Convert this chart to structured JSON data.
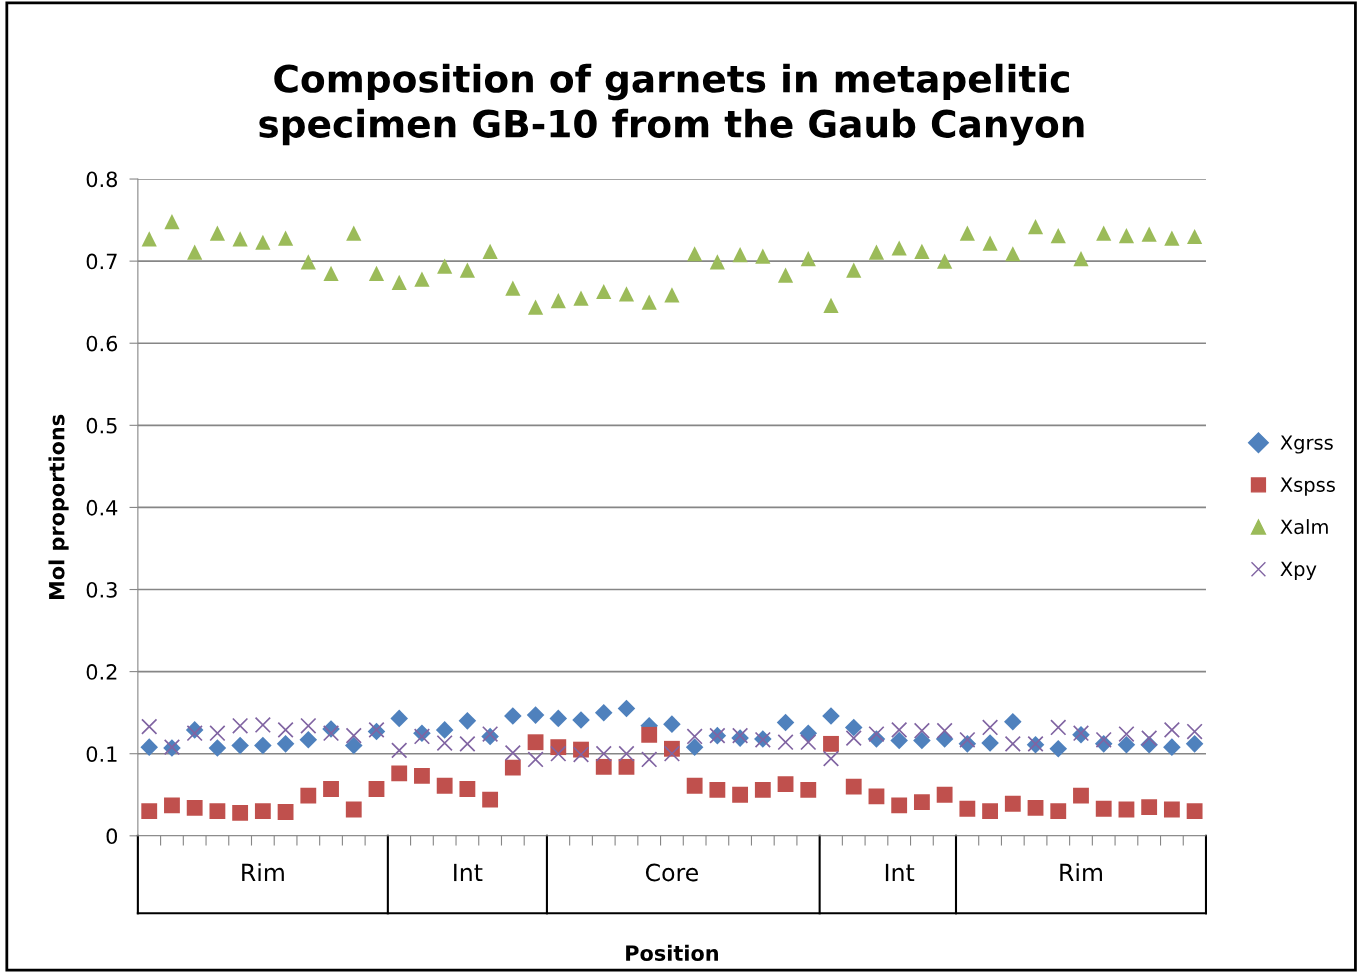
{
  "chart_data": {
    "type": "scatter",
    "title": "Composition of garnets in metapelitic\nspecimen GB-10 from the Gaub Canyon",
    "xlabel": "Position",
    "ylabel": "Mol proportions",
    "categories": [
      null,
      null,
      null,
      null,
      null,
      "Rim",
      null,
      null,
      null,
      null,
      null,
      null,
      null,
      null,
      "Int",
      null,
      null,
      null,
      null,
      null,
      null,
      null,
      null,
      "Core",
      null,
      null,
      null,
      null,
      null,
      null,
      null,
      null,
      null,
      "Int",
      null,
      null,
      null,
      null,
      null,
      null,
      null,
      "Rim",
      null,
      null,
      null,
      null,
      null
    ],
    "series": [
      {
        "name": "Xgrss",
        "color": "#4f81bd",
        "marker": "diamond",
        "values": [
          0.108,
          0.107,
          0.129,
          0.107,
          0.11,
          0.11,
          0.112,
          0.117,
          0.13,
          0.11,
          0.127,
          0.143,
          0.125,
          0.129,
          0.14,
          0.121,
          0.146,
          0.147,
          0.143,
          0.141,
          0.15,
          0.155,
          0.134,
          0.136,
          0.108,
          0.122,
          0.119,
          0.118,
          0.138,
          0.125,
          0.146,
          0.132,
          0.118,
          0.116,
          0.116,
          0.118,
          0.112,
          0.113,
          0.139,
          0.111,
          0.106,
          0.123,
          0.112,
          0.111,
          0.111,
          0.108,
          0.112
        ]
      },
      {
        "name": "Xspss",
        "color": "#c0504d",
        "marker": "square",
        "values": [
          0.03,
          0.037,
          0.034,
          0.03,
          0.028,
          0.03,
          0.029,
          0.049,
          0.057,
          0.032,
          0.057,
          0.076,
          0.073,
          0.061,
          0.057,
          0.044,
          0.083,
          0.114,
          0.108,
          0.105,
          0.084,
          0.084,
          0.123,
          0.106,
          0.061,
          0.056,
          0.05,
          0.056,
          0.063,
          0.056,
          0.112,
          0.06,
          0.048,
          0.037,
          0.041,
          0.05,
          0.033,
          0.03,
          0.039,
          0.034,
          0.03,
          0.049,
          0.033,
          0.032,
          0.035,
          0.032,
          0.03
        ]
      },
      {
        "name": "Xalm",
        "color": "#9bbb59",
        "marker": "triangle",
        "values": [
          0.727,
          0.748,
          0.711,
          0.734,
          0.727,
          0.723,
          0.728,
          0.699,
          0.685,
          0.734,
          0.685,
          0.674,
          0.678,
          0.694,
          0.689,
          0.712,
          0.667,
          0.644,
          0.652,
          0.655,
          0.663,
          0.66,
          0.65,
          0.659,
          0.709,
          0.699,
          0.708,
          0.706,
          0.683,
          0.703,
          0.646,
          0.689,
          0.711,
          0.716,
          0.712,
          0.7,
          0.734,
          0.722,
          0.709,
          0.742,
          0.731,
          0.703,
          0.734,
          0.731,
          0.733,
          0.728,
          0.73
        ]
      },
      {
        "name": "Xpy",
        "color": "#8064a2",
        "marker": "cross",
        "values": [
          0.133,
          0.108,
          0.125,
          0.125,
          0.134,
          0.135,
          0.129,
          0.134,
          0.125,
          0.122,
          0.129,
          0.104,
          0.121,
          0.113,
          0.112,
          0.124,
          0.101,
          0.093,
          0.1,
          0.099,
          0.1,
          0.1,
          0.093,
          0.1,
          0.121,
          0.122,
          0.122,
          0.117,
          0.114,
          0.114,
          0.094,
          0.119,
          0.124,
          0.129,
          0.128,
          0.128,
          0.117,
          0.132,
          0.112,
          0.112,
          0.132,
          0.125,
          0.117,
          0.124,
          0.119,
          0.129,
          0.127
        ]
      }
    ],
    "ylim": [
      0,
      0.8
    ],
    "yticks": [
      0,
      0.1,
      0.2,
      0.3,
      0.4,
      0.5,
      0.6,
      0.7,
      0.8
    ],
    "grid": "y",
    "legend": "right"
  }
}
